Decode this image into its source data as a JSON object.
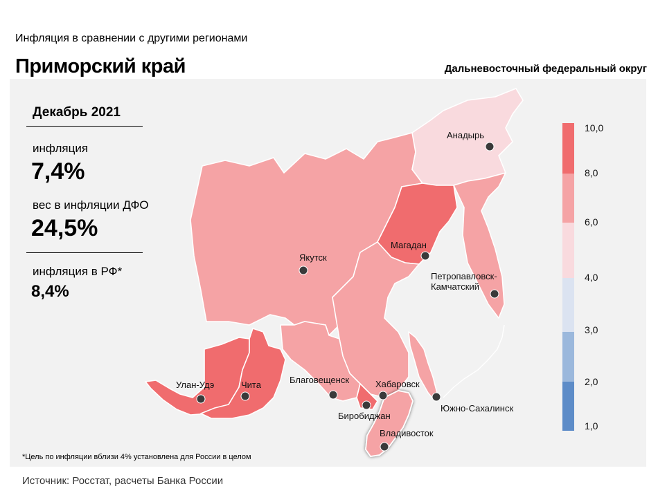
{
  "header": {
    "subtitle": "Инфляция  в сравнении  с другими регионами",
    "title": "Приморский край",
    "district": "Дальневосточный федеральный округ"
  },
  "stats": {
    "period": "Декабрь 2021",
    "inflation_label": "инфляция",
    "inflation_value": "7,4%",
    "weight_label": "вес в инфляции  ДФО",
    "weight_value": "24,5%",
    "rf_label": "инфляция  в РФ*",
    "rf_value": "8,4%"
  },
  "legend": {
    "ticks": [
      "10,0",
      "8,0",
      "6,0",
      "4,0",
      "3,0",
      "2,0",
      "1,0"
    ],
    "colors": {
      "8-10": "#f06c6e",
      "6-8": "#f5a3a5",
      "4-6": "#f9dade",
      "3-4": "#dbe3f1",
      "2-3": "#9bb8dc",
      "1-2": "#5d8cc8"
    }
  },
  "cities": [
    {
      "name": "Анадырь"
    },
    {
      "name": "Магадан"
    },
    {
      "name": "Якутск"
    },
    {
      "name": "Петропавловск-"
    },
    {
      "name": "Камчатский"
    },
    {
      "name": "Улан-Удэ"
    },
    {
      "name": "Чита"
    },
    {
      "name": "Благовещенск"
    },
    {
      "name": "Хабаровск"
    },
    {
      "name": "Биробиджан"
    },
    {
      "name": "Южно-Сахалинск"
    },
    {
      "name": "Владивосток"
    }
  ],
  "footnote": "*Цель по инфляции вблизи 4% установлена для России в целом",
  "source": "Источник: Росстат,  расчеты Банка России"
}
